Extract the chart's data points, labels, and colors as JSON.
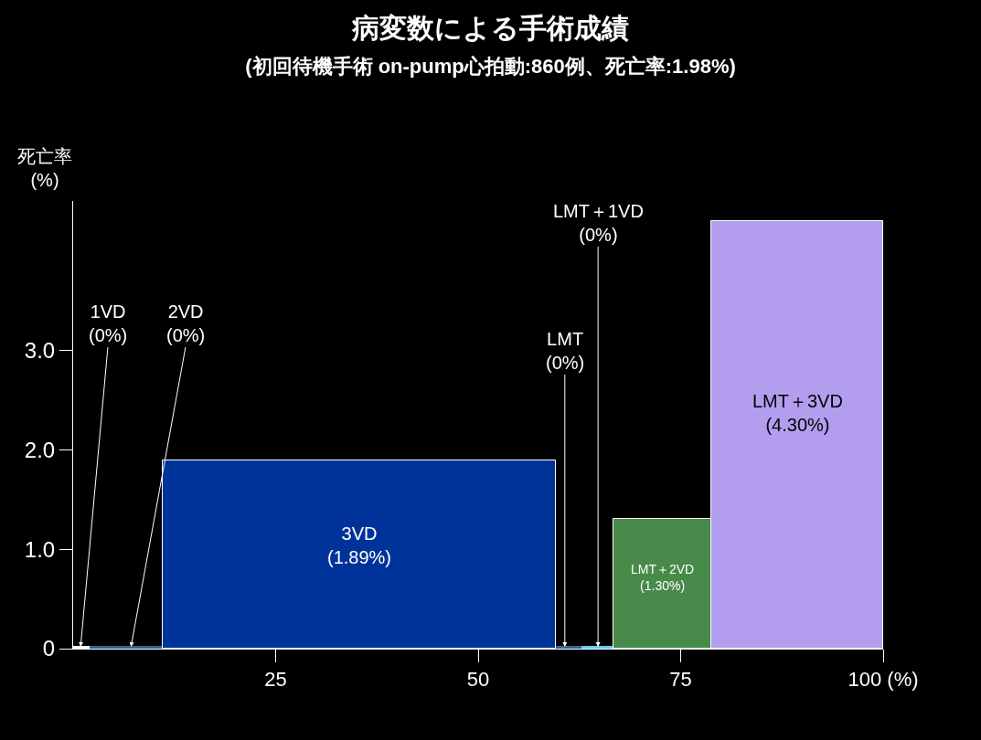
{
  "chart_data": {
    "type": "histogram",
    "title": "病変数による手術成績",
    "subtitle": "(初回待機手術 on-pump心拍動:860例、死亡率:1.98%)",
    "ylabel": "死亡率\n(%)",
    "bins": [
      0,
      2.0,
      11.1,
      59.6,
      62.8,
      66.7,
      78.8,
      100
    ],
    "values": [
      0,
      0,
      1.89,
      0,
      0,
      1.3,
      4.3
    ],
    "colors": [
      "#ffffff",
      "#336699",
      "#003399",
      "#336699",
      "#66ccff",
      "#478a4a",
      "#b39def"
    ],
    "xlim": [
      0,
      100
    ],
    "xticks": [
      25,
      50,
      75,
      {
        "value": 100,
        "label": "100 (%)"
      }
    ],
    "ylim": [
      0,
      4.5
    ],
    "yticks": [
      0,
      {
        "value": 1,
        "label": "1.0"
      },
      {
        "value": 2,
        "label": "2.0"
      },
      {
        "value": 3,
        "label": "3.0"
      }
    ],
    "annotations": [
      {
        "text": "1VD\n(0%)",
        "x": 0.9,
        "y": 0
      },
      {
        "text": "2VD\n(0%)",
        "x": 7.1,
        "y": 0
      },
      "3VD\n(1.89%)",
      {
        "text": "LMT\n(0%)",
        "x": 60.7,
        "y": 0
      },
      {
        "text": "LMT＋1VD\n(0%)",
        "x": 64.8,
        "y": 0
      },
      "LMT＋2VD\n(1.30%)",
      "LMT＋3VD\n(4.30%)"
    ],
    "grid": false
  }
}
